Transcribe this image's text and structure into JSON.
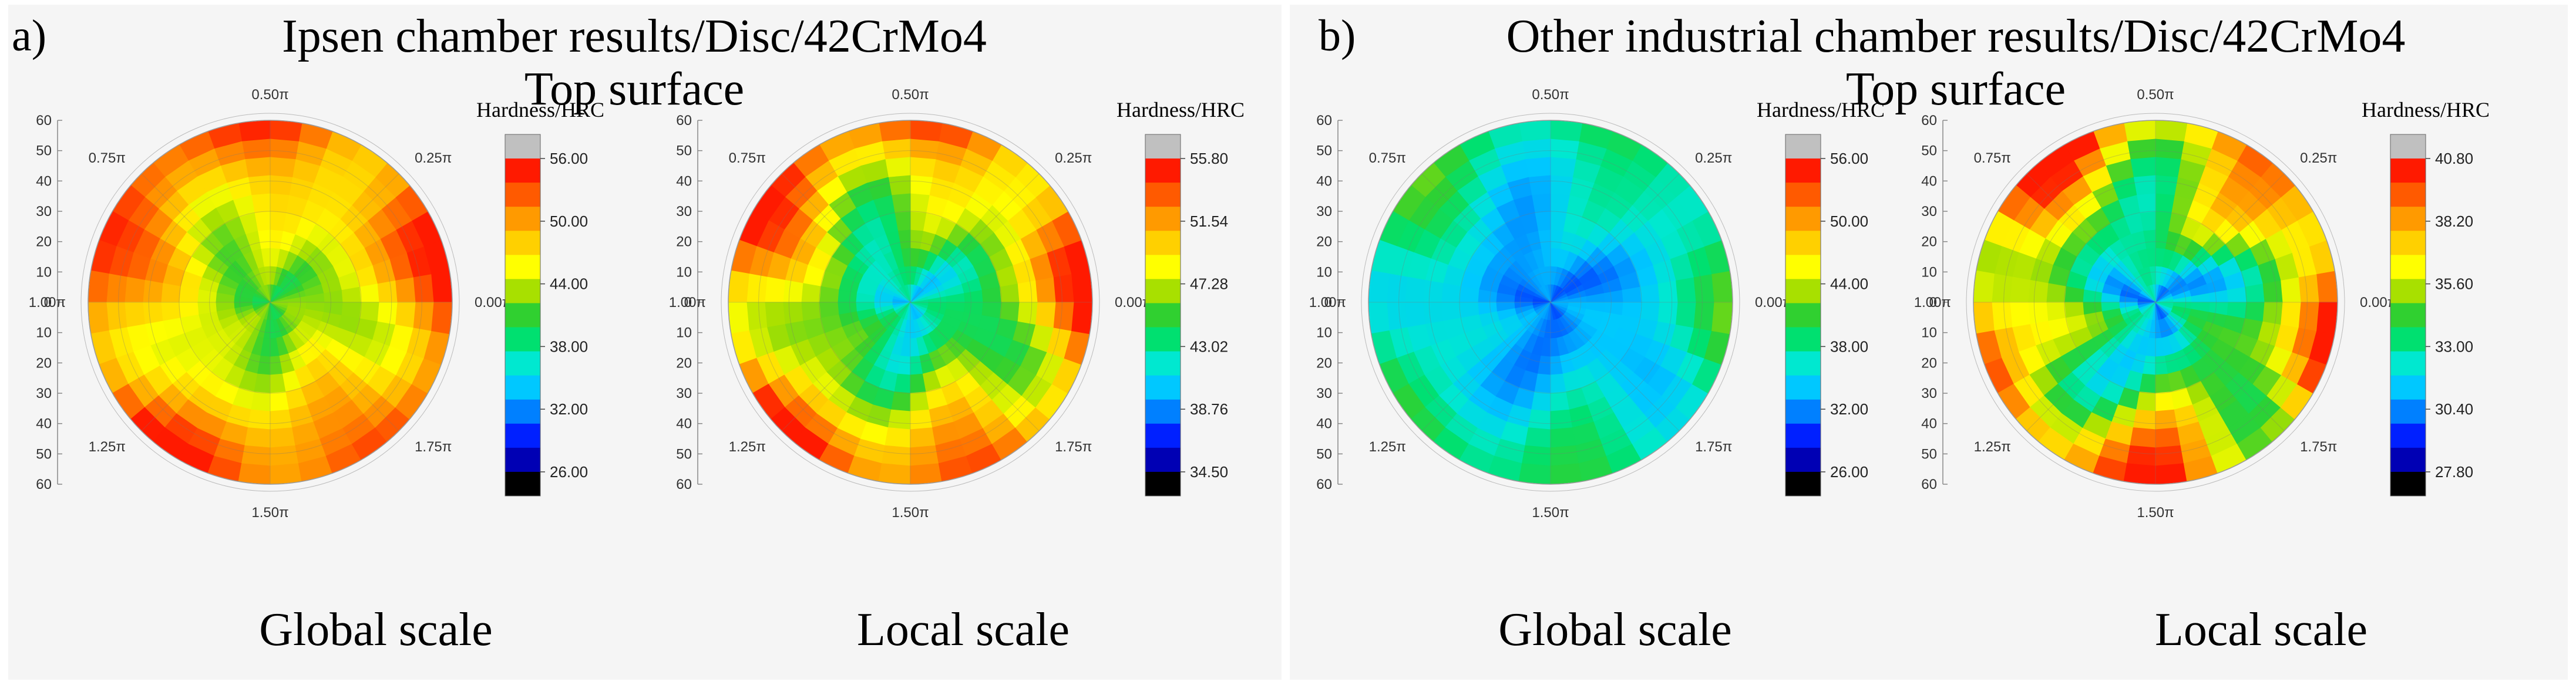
{
  "panels": [
    {
      "label": "a)",
      "title_line1": "Ipsen chamber results/Disc/42CrMo4",
      "title_line2": "Top surface"
    },
    {
      "label": "b)",
      "title_line1": "Other industrial chamber results/Disc/42CrMo4",
      "title_line2": "Top surface"
    }
  ],
  "chart_data": [
    {
      "type": "heatmap",
      "panel": "a)",
      "caption": "Global scale",
      "colorbar_title": "Hardness/HRC",
      "colorbar_ticks": [
        "56.00",
        "50.00",
        "44.00",
        "38.00",
        "32.00",
        "26.00"
      ],
      "colorbar_range": [
        26.0,
        56.0
      ],
      "radial_ticks": [
        "60",
        "50",
        "40",
        "30",
        "20",
        "10",
        "0",
        "10",
        "20",
        "30",
        "40",
        "50",
        "60"
      ],
      "angle_labels": [
        "0.50π",
        "0.25π",
        "0.00π",
        "1.75π",
        "1.50π",
        "1.25π",
        "1.00π",
        "0.75π"
      ],
      "field": {
        "center": 41,
        "edge": 54,
        "wobble": 3
      }
    },
    {
      "type": "heatmap",
      "panel": "a)",
      "caption": "Local scale",
      "colorbar_title": "Hardness/HRC",
      "colorbar_ticks": [
        "55.80",
        "51.54",
        "47.28",
        "43.02",
        "38.76",
        "34.50"
      ],
      "colorbar_range": [
        34.5,
        55.8
      ],
      "radial_ticks": [
        "60",
        "50",
        "40",
        "30",
        "20",
        "10",
        "0",
        "10",
        "20",
        "30",
        "40",
        "50",
        "60"
      ],
      "angle_labels": [
        "0.50π",
        "0.25π",
        "0.00π",
        "1.75π",
        "1.50π",
        "1.25π",
        "1.00π",
        "0.75π"
      ],
      "field": {
        "center": 41,
        "edge": 54,
        "wobble": 3
      }
    },
    {
      "type": "heatmap",
      "panel": "b)",
      "caption": "Global scale",
      "colorbar_title": "Hardness/HRC",
      "colorbar_ticks": [
        "56.00",
        "50.00",
        "44.00",
        "38.00",
        "32.00",
        "26.00"
      ],
      "colorbar_range": [
        26.0,
        56.0
      ],
      "radial_ticks": [
        "60",
        "50",
        "40",
        "30",
        "20",
        "10",
        "0",
        "10",
        "20",
        "30",
        "40",
        "50",
        "60"
      ],
      "angle_labels": [
        "0.50π",
        "0.25π",
        "0.00π",
        "1.75π",
        "1.50π",
        "1.25π",
        "1.00π",
        "0.75π"
      ],
      "field": {
        "center": 31,
        "edge": 39,
        "wobble": 2.5
      }
    },
    {
      "type": "heatmap",
      "panel": "b)",
      "caption": "Local scale",
      "colorbar_title": "Hardness/HRC",
      "colorbar_ticks": [
        "40.80",
        "38.20",
        "35.60",
        "33.00",
        "30.40",
        "27.80"
      ],
      "colorbar_range": [
        27.8,
        40.8
      ],
      "radial_ticks": [
        "60",
        "50",
        "40",
        "30",
        "20",
        "10",
        "0",
        "10",
        "20",
        "30",
        "40",
        "50",
        "60"
      ],
      "angle_labels": [
        "0.50π",
        "0.25π",
        "0.00π",
        "1.75π",
        "1.50π",
        "1.25π",
        "1.00π",
        "0.75π"
      ],
      "field": {
        "center": 31,
        "edge": 39,
        "wobble": 2.5
      }
    }
  ]
}
